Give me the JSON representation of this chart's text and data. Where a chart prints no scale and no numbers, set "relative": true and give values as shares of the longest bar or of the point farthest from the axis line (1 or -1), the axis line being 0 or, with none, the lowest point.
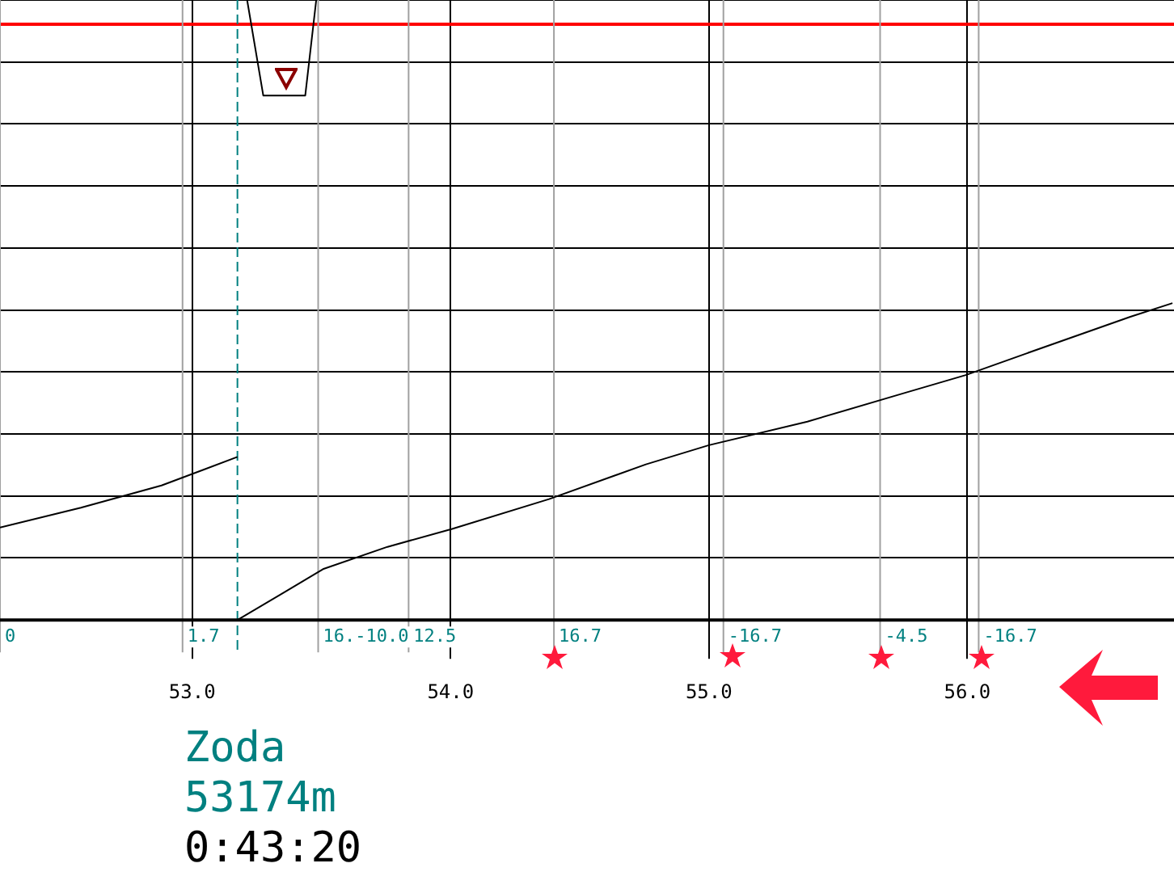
{
  "chart_data": {
    "type": "line",
    "relative": true,
    "xlim": [
      52.256,
      56.8
    ],
    "xticks": [
      {
        "value": 53,
        "label": "53.0"
      },
      {
        "value": 54,
        "label": "54.0"
      },
      {
        "value": 55,
        "label": "55.0"
      },
      {
        "value": 56,
        "label": "56.0"
      }
    ],
    "grid": true,
    "legend": false,
    "marker": "none",
    "line_style": "solid",
    "series": [
      {
        "color": "#000000",
        "x": [
          52.256,
          52.569,
          52.881,
          53.175
        ],
        "values": [
          0.149,
          0.181,
          0.217,
          0.263
        ]
      },
      {
        "color": "#000000",
        "x": [
          53.175,
          53.35,
          53.506,
          53.756,
          54.006,
          54.381,
          54.756,
          55.0,
          55.381,
          55.756,
          55.994,
          56.256,
          56.631,
          56.794
        ],
        "values": [
          0,
          0.043,
          0.082,
          0.118,
          0.147,
          0.195,
          0.251,
          0.282,
          0.32,
          0.366,
          0.395,
          0.434,
          0.489,
          0.511
        ]
      },
      {
        "color": "#000000",
        "x": [
          53.2125,
          53.275,
          53.4375,
          53.48
        ],
        "values": [
          1,
          0.846,
          0.846,
          1
        ]
      }
    ],
    "ref_lines": [
      {
        "axis": "y",
        "value": 0.961,
        "color": "#ff0000",
        "line_style": "solid"
      },
      {
        "axis": "x",
        "value": 53.175,
        "color": "#008080",
        "line_style": "dashed"
      },
      {
        "axis": "x",
        "value": 52.256,
        "color": "#a0a0a0",
        "line_style": "solid"
      },
      {
        "axis": "x",
        "value": 52.9625,
        "color": "#a0a0a0",
        "line_style": "solid"
      },
      {
        "axis": "x",
        "value": 53.4875,
        "color": "#a0a0a0",
        "line_style": "solid"
      },
      {
        "axis": "x",
        "value": 53.8375,
        "color": "#a0a0a0",
        "line_style": "solid"
      },
      {
        "axis": "x",
        "value": 54.4,
        "color": "#a0a0a0",
        "line_style": "solid"
      },
      {
        "axis": "x",
        "value": 55.056,
        "color": "#a0a0a0",
        "line_style": "solid"
      },
      {
        "axis": "x",
        "value": 55.6625,
        "color": "#a0a0a0",
        "line_style": "solid"
      },
      {
        "axis": "x",
        "value": 56.044,
        "color": "#a0a0a0",
        "line_style": "solid"
      }
    ],
    "annotations": [
      {
        "text": "0",
        "x": 52.256,
        "y": 0
      },
      {
        "text": "1.7",
        "x": 52.9625,
        "y": 0
      },
      {
        "text": "16.-10.0",
        "x": 53.4875,
        "y": 0
      },
      {
        "text": "12.5",
        "x": 53.8375,
        "y": 0
      },
      {
        "text": "16.7",
        "x": 54.4,
        "y": 0
      },
      {
        "text": "-16.7",
        "x": 55.056,
        "y": 0
      },
      {
        "text": "-4.5",
        "x": 55.6625,
        "y": 0
      },
      {
        "text": "-16.7",
        "x": 56.044,
        "y": 0
      },
      "Zoda",
      "53174m",
      "0:43:20"
    ]
  }
}
